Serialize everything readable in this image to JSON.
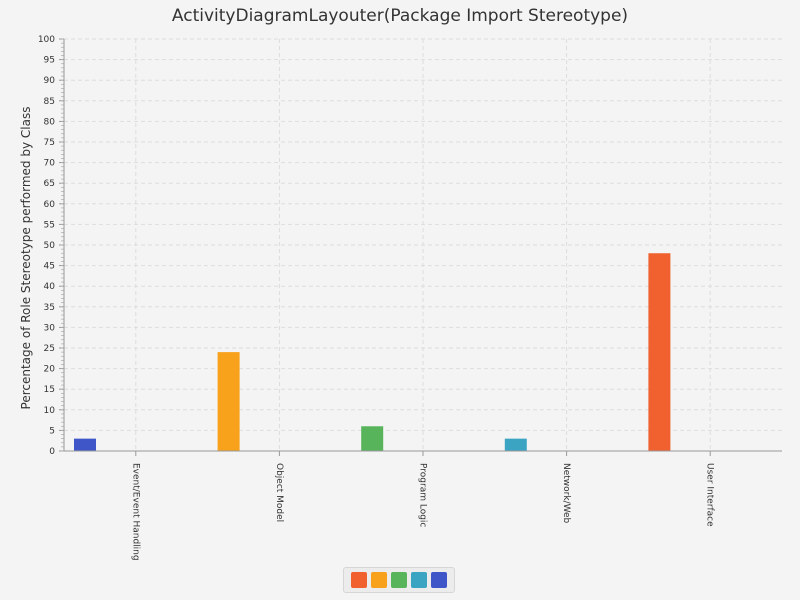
{
  "chart_data": {
    "type": "bar",
    "title": "ActivityDiagramLayouter(Package Import Stereotype)",
    "xlabel": "",
    "ylabel": "Percentage of Role Stereotype performed by Class",
    "ylim": [
      0,
      100
    ],
    "yticks": [
      0,
      5,
      10,
      15,
      20,
      25,
      30,
      35,
      40,
      45,
      50,
      55,
      60,
      65,
      70,
      75,
      80,
      85,
      90,
      95,
      100
    ],
    "ytick_labels": [
      "0",
      "5",
      "10",
      "15",
      "20",
      "25",
      "30",
      "35",
      "40",
      "45",
      "50",
      "55",
      "60",
      "65",
      "70",
      "75",
      "80",
      "85",
      "90",
      "95",
      "100"
    ],
    "grid": true,
    "legend_position": "bottom",
    "categories": [
      "Event/Event Handling",
      "Object Model",
      "Program Logic",
      "Network/Web",
      "User Interface"
    ],
    "series": [
      {
        "color": "#f0612f",
        "values": [
          0,
          0,
          0,
          0,
          48
        ]
      },
      {
        "color": "#f8a11b",
        "values": [
          0,
          24,
          0,
          0,
          0
        ]
      },
      {
        "color": "#57b45a",
        "values": [
          0,
          0,
          6,
          0,
          0
        ]
      },
      {
        "color": "#3ba4c3",
        "values": [
          0,
          0,
          0,
          3,
          0
        ]
      },
      {
        "color": "#3f56c9",
        "values": [
          3,
          0,
          0,
          0,
          0
        ]
      }
    ],
    "bars": [
      {
        "category_index": 0,
        "series_index": 4,
        "value": 3
      },
      {
        "category_index": 1,
        "series_index": 1,
        "value": 24
      },
      {
        "category_index": 2,
        "series_index": 2,
        "value": 6
      },
      {
        "category_index": 3,
        "series_index": 3,
        "value": 3
      },
      {
        "category_index": 4,
        "series_index": 0,
        "value": 48
      }
    ]
  }
}
